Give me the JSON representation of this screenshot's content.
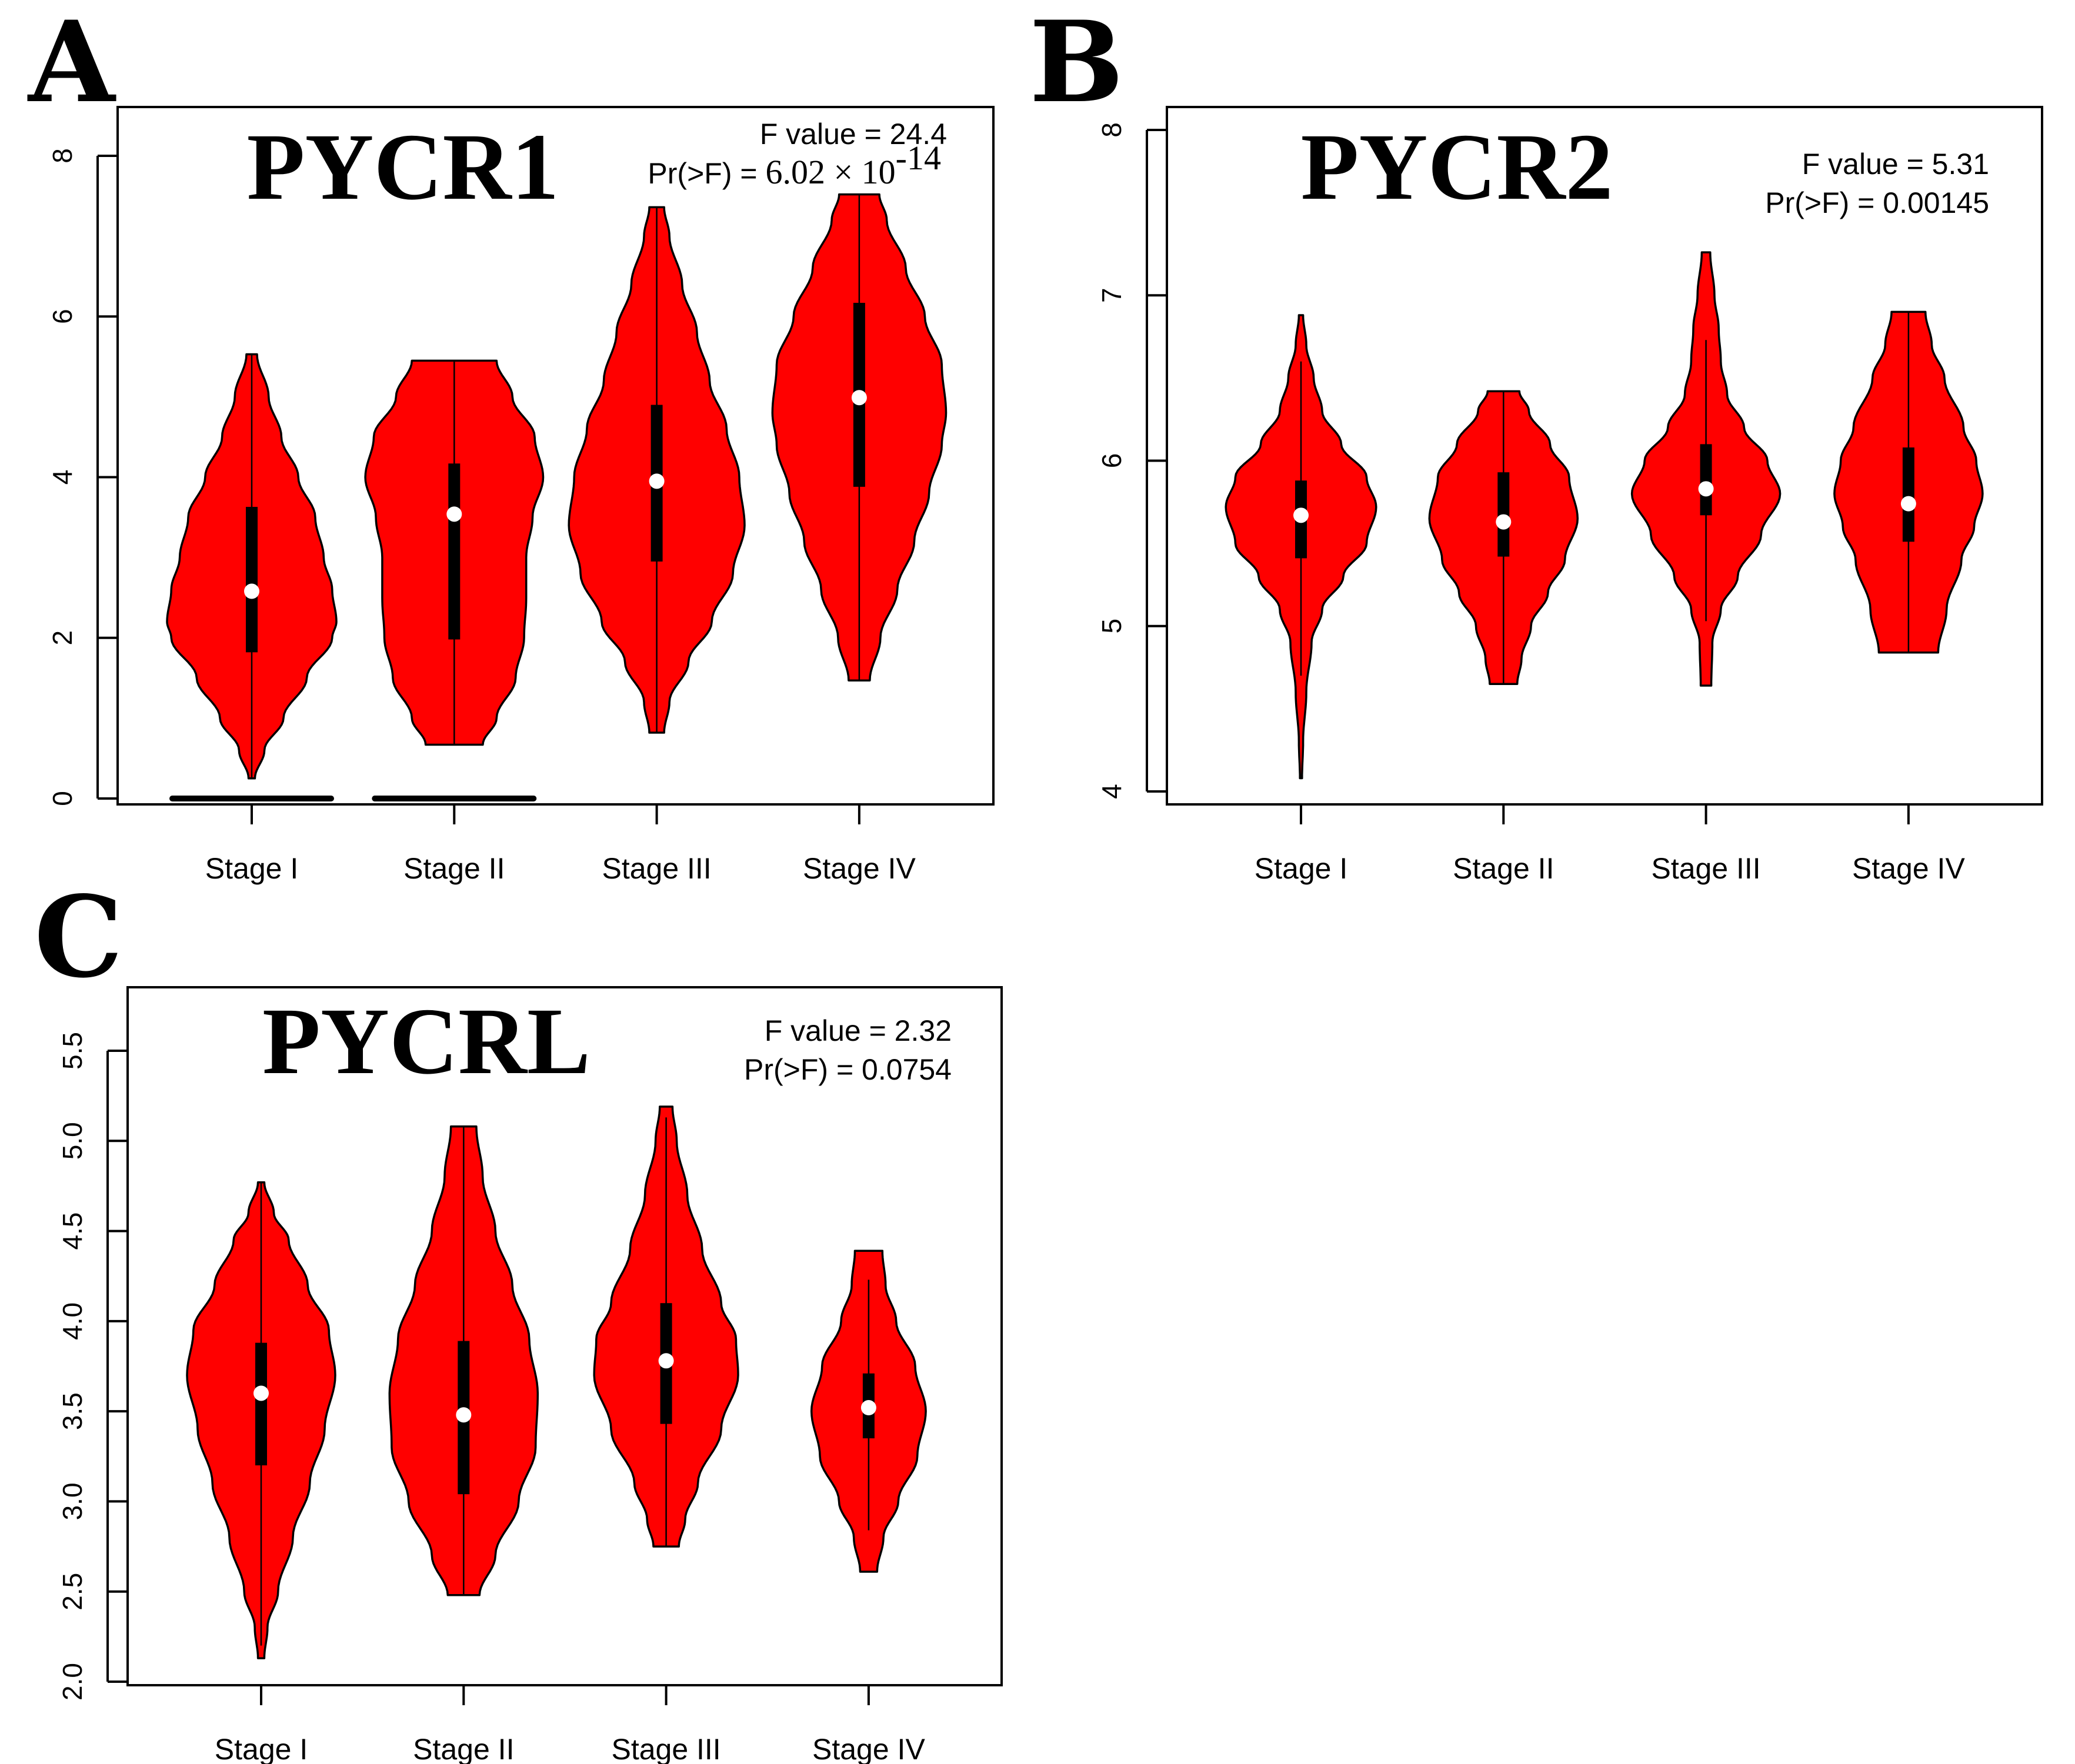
{
  "figure": {
    "violin_fill": "#ff0000",
    "panels": [
      {
        "letter": "A",
        "title": "PYCR1",
        "stat_line1": "F value = 24.4",
        "stat_line2_prefix": "Pr(>F) = ",
        "stat_line2_mantissa": "6.02 × 10",
        "stat_line2_exponent": "-14",
        "stat_line2_plain": ""
      },
      {
        "letter": "B",
        "title": "PYCR2",
        "stat_line1": "F value = 5.31",
        "stat_line2_prefix": "",
        "stat_line2_mantissa": "",
        "stat_line2_exponent": "",
        "stat_line2_plain": "Pr(>F) = 0.00145"
      },
      {
        "letter": "C",
        "title": "PYCRL",
        "stat_line1": "F value = 2.32",
        "stat_line2_prefix": "",
        "stat_line2_mantissa": "",
        "stat_line2_exponent": "",
        "stat_line2_plain": "Pr(>F) = 0.0754"
      }
    ]
  },
  "chart_data": [
    {
      "type": "violin",
      "title": "PYCR1",
      "annotation": [
        "F value = 24.4",
        "Pr(>F) = 6.02 × 10^-14"
      ],
      "xlabel": "",
      "ylabel": "",
      "categories": [
        "Stage I",
        "Stage II",
        "Stage III",
        "Stage IV"
      ],
      "ylim": [
        -0.2,
        8.5
      ],
      "yticks": [
        0,
        2,
        4,
        6,
        8
      ],
      "ytick_labels": [
        "0",
        "2",
        "4",
        "6",
        "8"
      ],
      "grid": false,
      "zero_outlier_bars": [
        true,
        true,
        false,
        false
      ],
      "series": [
        {
          "name": "Stage I",
          "min": 0.25,
          "q1": 1.82,
          "median": 2.58,
          "q3": 3.63,
          "max": 5.53,
          "whisker_low": 0.25,
          "whisker_high": 5.53,
          "density_profile": [
            [
              0.25,
              0.03
            ],
            [
              0.6,
              0.12
            ],
            [
              1.0,
              0.3
            ],
            [
              1.5,
              0.52
            ],
            [
              2.0,
              0.76
            ],
            [
              2.2,
              0.8
            ],
            [
              2.6,
              0.76
            ],
            [
              3.0,
              0.68
            ],
            [
              3.5,
              0.6
            ],
            [
              4.0,
              0.44
            ],
            [
              4.5,
              0.28
            ],
            [
              5.0,
              0.16
            ],
            [
              5.53,
              0.05
            ]
          ]
        },
        {
          "name": "Stage II",
          "min": 0.67,
          "q1": 1.98,
          "median": 3.54,
          "q3": 4.17,
          "max": 5.45,
          "whisker_low": 0.67,
          "whisker_high": 5.45,
          "density_profile": [
            [
              0.67,
              0.27
            ],
            [
              1.0,
              0.4
            ],
            [
              1.5,
              0.58
            ],
            [
              2.0,
              0.66
            ],
            [
              2.5,
              0.68
            ],
            [
              3.0,
              0.68
            ],
            [
              3.5,
              0.74
            ],
            [
              4.0,
              0.84
            ],
            [
              4.5,
              0.76
            ],
            [
              5.0,
              0.55
            ],
            [
              5.45,
              0.4
            ]
          ]
        },
        {
          "name": "Stage III",
          "min": 0.82,
          "q1": 2.95,
          "median": 3.95,
          "q3": 4.9,
          "max": 7.36,
          "whisker_low": 0.82,
          "whisker_high": 7.36,
          "density_profile": [
            [
              0.82,
              0.07
            ],
            [
              1.2,
              0.12
            ],
            [
              1.7,
              0.3
            ],
            [
              2.2,
              0.52
            ],
            [
              2.8,
              0.72
            ],
            [
              3.4,
              0.83
            ],
            [
              4.0,
              0.78
            ],
            [
              4.6,
              0.66
            ],
            [
              5.2,
              0.5
            ],
            [
              5.8,
              0.38
            ],
            [
              6.4,
              0.24
            ],
            [
              7.0,
              0.12
            ],
            [
              7.36,
              0.07
            ]
          ]
        },
        {
          "name": "Stage IV",
          "min": 1.47,
          "q1": 3.88,
          "median": 4.99,
          "q3": 6.17,
          "max": 7.52,
          "whisker_low": 1.47,
          "whisker_high": 7.52,
          "density_profile": [
            [
              1.47,
              0.1
            ],
            [
              2.0,
              0.2
            ],
            [
              2.6,
              0.36
            ],
            [
              3.2,
              0.52
            ],
            [
              3.8,
              0.66
            ],
            [
              4.4,
              0.78
            ],
            [
              4.8,
              0.82
            ],
            [
              5.4,
              0.78
            ],
            [
              6.0,
              0.62
            ],
            [
              6.6,
              0.44
            ],
            [
              7.2,
              0.26
            ],
            [
              7.52,
              0.19
            ]
          ]
        }
      ]
    },
    {
      "type": "violin",
      "title": "PYCR2",
      "annotation": [
        "F value = 5.31",
        "Pr(>F) = 0.00145"
      ],
      "xlabel": "",
      "ylabel": "",
      "categories": [
        "Stage I",
        "Stage II",
        "Stage III",
        "Stage IV"
      ],
      "ylim": [
        3.9,
        8.3
      ],
      "yticks": [
        4,
        5,
        6,
        7,
        8
      ],
      "ytick_labels": [
        "4",
        "5",
        "6",
        "7",
        "8"
      ],
      "grid": false,
      "zero_outlier_bars": [
        false,
        false,
        false,
        false
      ],
      "series": [
        {
          "name": "Stage I",
          "min": 4.08,
          "q1": 5.41,
          "median": 5.67,
          "q3": 5.88,
          "max": 6.88,
          "whisker_low": 4.7,
          "whisker_high": 6.6,
          "density_profile": [
            [
              4.08,
              0.01
            ],
            [
              4.3,
              0.02
            ],
            [
              4.6,
              0.05
            ],
            [
              4.9,
              0.1
            ],
            [
              5.1,
              0.2
            ],
            [
              5.3,
              0.4
            ],
            [
              5.5,
              0.62
            ],
            [
              5.72,
              0.71
            ],
            [
              5.9,
              0.62
            ],
            [
              6.1,
              0.38
            ],
            [
              6.3,
              0.2
            ],
            [
              6.5,
              0.12
            ],
            [
              6.7,
              0.05
            ],
            [
              6.88,
              0.02
            ]
          ]
        },
        {
          "name": "Stage II",
          "min": 4.65,
          "q1": 5.42,
          "median": 5.63,
          "q3": 5.93,
          "max": 6.42,
          "whisker_low": 4.65,
          "whisker_high": 6.42,
          "density_profile": [
            [
              4.65,
              0.13
            ],
            [
              4.8,
              0.17
            ],
            [
              5.0,
              0.26
            ],
            [
              5.2,
              0.42
            ],
            [
              5.4,
              0.58
            ],
            [
              5.65,
              0.7
            ],
            [
              5.9,
              0.62
            ],
            [
              6.1,
              0.44
            ],
            [
              6.3,
              0.24
            ],
            [
              6.42,
              0.15
            ]
          ]
        },
        {
          "name": "Stage III",
          "min": 4.64,
          "q1": 5.67,
          "median": 5.83,
          "q3": 6.1,
          "max": 7.26,
          "whisker_low": 5.03,
          "whisker_high": 6.73,
          "density_profile": [
            [
              4.64,
              0.05
            ],
            [
              4.9,
              0.06
            ],
            [
              5.1,
              0.14
            ],
            [
              5.3,
              0.3
            ],
            [
              5.55,
              0.52
            ],
            [
              5.8,
              0.7
            ],
            [
              6.0,
              0.58
            ],
            [
              6.2,
              0.36
            ],
            [
              6.4,
              0.2
            ],
            [
              6.6,
              0.14
            ],
            [
              6.8,
              0.12
            ],
            [
              7.0,
              0.08
            ],
            [
              7.26,
              0.04
            ]
          ]
        },
        {
          "name": "Stage IV",
          "min": 4.84,
          "q1": 5.51,
          "median": 5.74,
          "q3": 6.08,
          "max": 6.9,
          "whisker_low": 4.84,
          "whisker_high": 6.9,
          "density_profile": [
            [
              4.84,
              0.28
            ],
            [
              5.1,
              0.36
            ],
            [
              5.4,
              0.5
            ],
            [
              5.6,
              0.62
            ],
            [
              5.8,
              0.7
            ],
            [
              6.0,
              0.64
            ],
            [
              6.2,
              0.52
            ],
            [
              6.5,
              0.34
            ],
            [
              6.7,
              0.22
            ],
            [
              6.9,
              0.16
            ]
          ]
        }
      ]
    },
    {
      "type": "violin",
      "title": "PYCRL",
      "annotation": [
        "F value = 2.32",
        "Pr(>F) = 0.0754"
      ],
      "xlabel": "",
      "ylabel": "",
      "categories": [
        "Stage I",
        "Stage II",
        "Stage III",
        "Stage IV"
      ],
      "ylim": [
        1.97,
        5.85
      ],
      "yticks": [
        2.0,
        2.5,
        3.0,
        3.5,
        4.0,
        4.5,
        5.0,
        5.5
      ],
      "ytick_labels": [
        "2.0",
        "2.5",
        "3.0",
        "3.5",
        "4.0",
        "4.5",
        "5.0",
        "5.5"
      ],
      "grid": false,
      "zero_outlier_bars": [
        false,
        false,
        false,
        false
      ],
      "series": [
        {
          "name": "Stage I",
          "min": 2.13,
          "q1": 3.2,
          "median": 3.6,
          "q3": 3.88,
          "max": 4.77,
          "whisker_low": 2.2,
          "whisker_high": 4.77,
          "density_profile": [
            [
              2.13,
              0.03
            ],
            [
              2.3,
              0.06
            ],
            [
              2.5,
              0.16
            ],
            [
              2.8,
              0.3
            ],
            [
              3.1,
              0.46
            ],
            [
              3.4,
              0.6
            ],
            [
              3.7,
              0.7
            ],
            [
              3.95,
              0.64
            ],
            [
              4.2,
              0.44
            ],
            [
              4.45,
              0.26
            ],
            [
              4.6,
              0.12
            ],
            [
              4.77,
              0.03
            ]
          ]
        },
        {
          "name": "Stage II",
          "min": 2.48,
          "q1": 3.04,
          "median": 3.48,
          "q3": 3.89,
          "max": 5.08,
          "whisker_low": 2.48,
          "whisker_high": 5.08,
          "density_profile": [
            [
              2.48,
              0.15
            ],
            [
              2.7,
              0.3
            ],
            [
              3.0,
              0.52
            ],
            [
              3.3,
              0.68
            ],
            [
              3.6,
              0.7
            ],
            [
              3.9,
              0.62
            ],
            [
              4.2,
              0.46
            ],
            [
              4.5,
              0.3
            ],
            [
              4.8,
              0.18
            ],
            [
              5.08,
              0.12
            ]
          ]
        },
        {
          "name": "Stage III",
          "min": 2.75,
          "q1": 3.43,
          "median": 3.78,
          "q3": 4.1,
          "max": 5.19,
          "whisker_low": 2.75,
          "whisker_high": 5.13,
          "density_profile": [
            [
              2.75,
              0.12
            ],
            [
              2.9,
              0.18
            ],
            [
              3.1,
              0.3
            ],
            [
              3.4,
              0.52
            ],
            [
              3.7,
              0.68
            ],
            [
              3.9,
              0.66
            ],
            [
              4.1,
              0.52
            ],
            [
              4.4,
              0.34
            ],
            [
              4.7,
              0.2
            ],
            [
              5.0,
              0.1
            ],
            [
              5.19,
              0.06
            ]
          ]
        },
        {
          "name": "Stage IV",
          "min": 2.61,
          "q1": 3.35,
          "median": 3.52,
          "q3": 3.71,
          "max": 4.39,
          "whisker_low": 2.84,
          "whisker_high": 4.23,
          "density_profile": [
            [
              2.61,
              0.08
            ],
            [
              2.8,
              0.14
            ],
            [
              3.0,
              0.28
            ],
            [
              3.25,
              0.46
            ],
            [
              3.5,
              0.54
            ],
            [
              3.75,
              0.44
            ],
            [
              4.0,
              0.26
            ],
            [
              4.2,
              0.16
            ],
            [
              4.39,
              0.13
            ]
          ]
        }
      ]
    }
  ]
}
